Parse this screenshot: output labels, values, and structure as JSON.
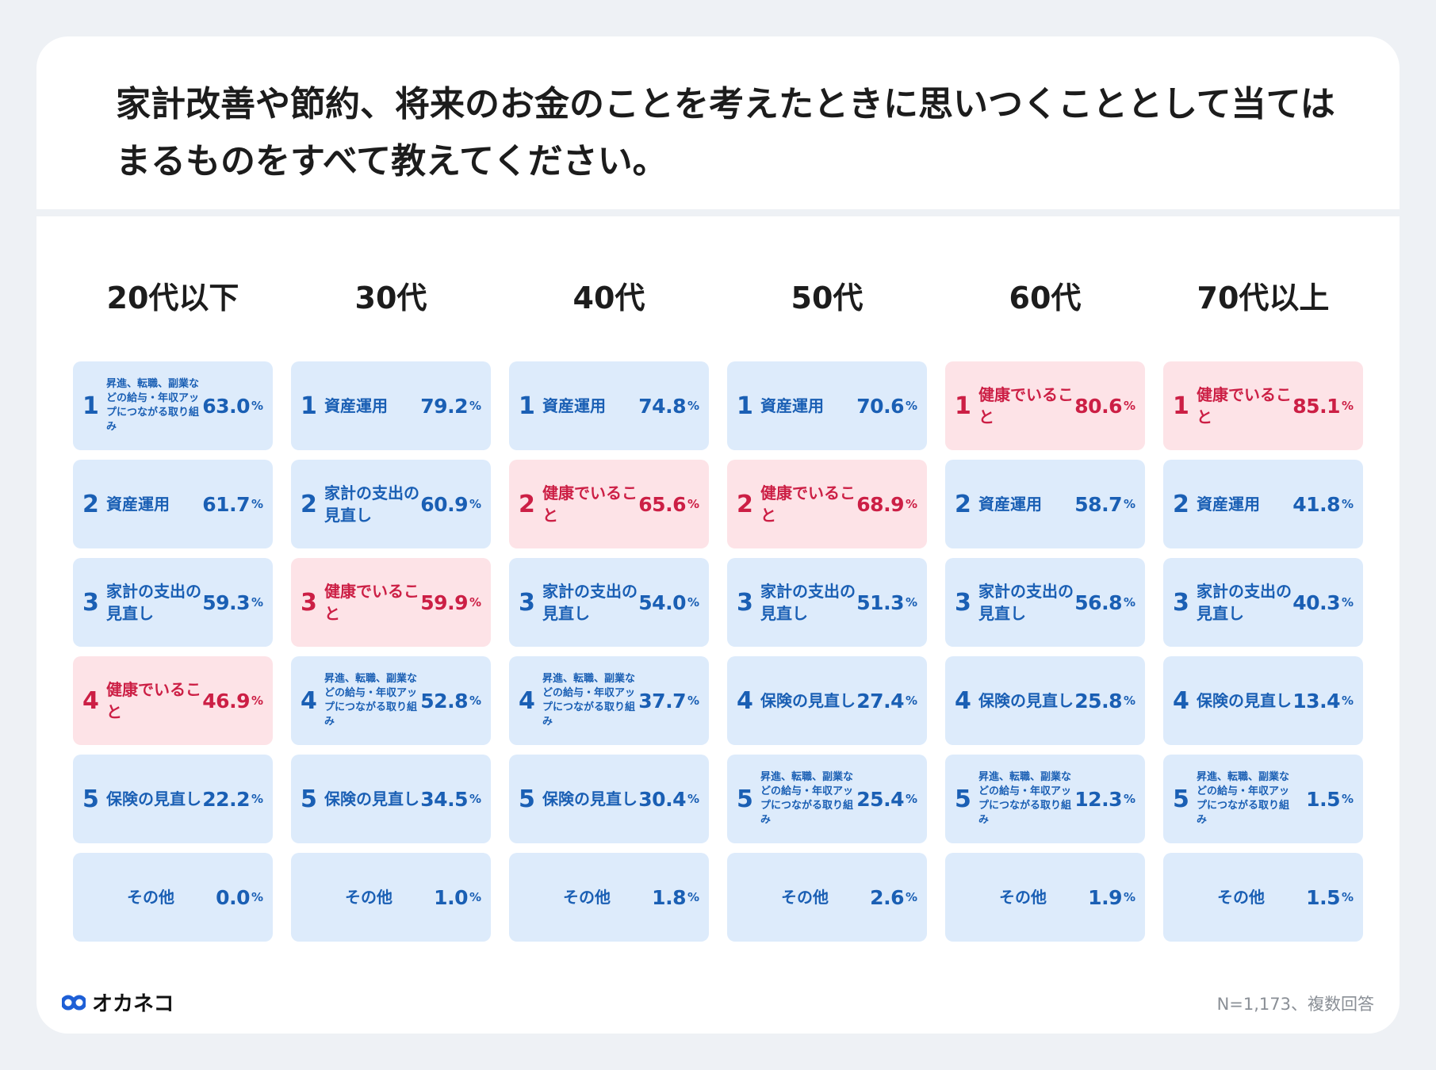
{
  "title": "家計改善や節約、将来のお金のことを考えたときに思いつくこととして当てはまるものをすべて教えてください。",
  "footnote": "N=1,173、複数回答",
  "brand": "オカネコ",
  "percent_suffix": "%",
  "colors": {
    "normal_bg": "#ddebfb",
    "normal_text": "#1a5fb4",
    "highlight_bg": "#fde3e7",
    "highlight_text": "#cc1f45"
  },
  "chart_data": {
    "type": "table",
    "title": "家計改善や節約、将来のお金のことを考えたときに思いつくこととして当てはまるものをすべて教えてください。",
    "unit": "%",
    "columns": [
      {
        "age_group": "20代以下",
        "items": [
          {
            "rank": "1",
            "label": "昇進、転職、副業などの給与・年収アップにつながる取り組み",
            "value": "63.0",
            "highlight": false
          },
          {
            "rank": "2",
            "label": "資産運用",
            "value": "61.7",
            "highlight": false
          },
          {
            "rank": "3",
            "label": "家計の支出の見直し",
            "value": "59.3",
            "highlight": false
          },
          {
            "rank": "4",
            "label": "健康でいること",
            "value": "46.9",
            "highlight": true
          },
          {
            "rank": "5",
            "label": "保険の見直し",
            "value": "22.2",
            "highlight": false
          },
          {
            "rank": "",
            "label": "その他",
            "value": "0.0",
            "highlight": false
          }
        ]
      },
      {
        "age_group": "30代",
        "items": [
          {
            "rank": "1",
            "label": "資産運用",
            "value": "79.2",
            "highlight": false
          },
          {
            "rank": "2",
            "label": "家計の支出の見直し",
            "value": "60.9",
            "highlight": false
          },
          {
            "rank": "3",
            "label": "健康でいること",
            "value": "59.9",
            "highlight": true
          },
          {
            "rank": "4",
            "label": "昇進、転職、副業などの給与・年収アップにつながる取り組み",
            "value": "52.8",
            "highlight": false
          },
          {
            "rank": "5",
            "label": "保険の見直し",
            "value": "34.5",
            "highlight": false
          },
          {
            "rank": "",
            "label": "その他",
            "value": "1.0",
            "highlight": false
          }
        ]
      },
      {
        "age_group": "40代",
        "items": [
          {
            "rank": "1",
            "label": "資産運用",
            "value": "74.8",
            "highlight": false
          },
          {
            "rank": "2",
            "label": "健康でいること",
            "value": "65.6",
            "highlight": true
          },
          {
            "rank": "3",
            "label": "家計の支出の見直し",
            "value": "54.0",
            "highlight": false
          },
          {
            "rank": "4",
            "label": "昇進、転職、副業などの給与・年収アップにつながる取り組み",
            "value": "37.7",
            "highlight": false
          },
          {
            "rank": "5",
            "label": "保険の見直し",
            "value": "30.4",
            "highlight": false
          },
          {
            "rank": "",
            "label": "その他",
            "value": "1.8",
            "highlight": false
          }
        ]
      },
      {
        "age_group": "50代",
        "items": [
          {
            "rank": "1",
            "label": "資産運用",
            "value": "70.6",
            "highlight": false
          },
          {
            "rank": "2",
            "label": "健康でいること",
            "value": "68.9",
            "highlight": true
          },
          {
            "rank": "3",
            "label": "家計の支出の見直し",
            "value": "51.3",
            "highlight": false
          },
          {
            "rank": "4",
            "label": "保険の見直し",
            "value": "27.4",
            "highlight": false
          },
          {
            "rank": "5",
            "label": "昇進、転職、副業などの給与・年収アップにつながる取り組み",
            "value": "25.4",
            "highlight": false
          },
          {
            "rank": "",
            "label": "その他",
            "value": "2.6",
            "highlight": false
          }
        ]
      },
      {
        "age_group": "60代",
        "items": [
          {
            "rank": "1",
            "label": "健康でいること",
            "value": "80.6",
            "highlight": true
          },
          {
            "rank": "2",
            "label": "資産運用",
            "value": "58.7",
            "highlight": false
          },
          {
            "rank": "3",
            "label": "家計の支出の見直し",
            "value": "56.8",
            "highlight": false
          },
          {
            "rank": "4",
            "label": "保険の見直し",
            "value": "25.8",
            "highlight": false
          },
          {
            "rank": "5",
            "label": "昇進、転職、副業などの給与・年収アップにつながる取り組み",
            "value": "12.3",
            "highlight": false
          },
          {
            "rank": "",
            "label": "その他",
            "value": "1.9",
            "highlight": false
          }
        ]
      },
      {
        "age_group": "70代以上",
        "items": [
          {
            "rank": "1",
            "label": "健康でいること",
            "value": "85.1",
            "highlight": true
          },
          {
            "rank": "2",
            "label": "資産運用",
            "value": "41.8",
            "highlight": false
          },
          {
            "rank": "3",
            "label": "家計の支出の見直し",
            "value": "40.3",
            "highlight": false
          },
          {
            "rank": "4",
            "label": "保険の見直し",
            "value": "13.4",
            "highlight": false
          },
          {
            "rank": "5",
            "label": "昇進、転職、副業などの給与・年収アップにつながる取り組み",
            "value": "1.5",
            "highlight": false
          },
          {
            "rank": "",
            "label": "その他",
            "value": "1.5",
            "highlight": false
          }
        ]
      }
    ]
  }
}
